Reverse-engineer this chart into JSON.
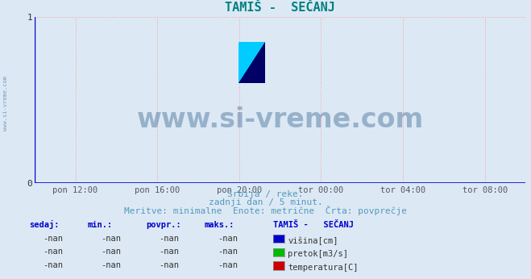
{
  "title": "TAMIŠ -  SEČANJ",
  "background_color": "#dce9f5",
  "plot_bg_color": "#dce9f5",
  "grid_color": "#ff9999",
  "axis_color": "#0000cc",
  "title_color": "#008080",
  "xlim": [
    0,
    1
  ],
  "ylim": [
    0,
    1
  ],
  "yticks": [
    0,
    1
  ],
  "xtick_labels": [
    "pon 12:00",
    "pon 16:00",
    "pon 20:00",
    "tor 00:00",
    "tor 04:00",
    "tor 08:00"
  ],
  "xtick_positions": [
    0.0833,
    0.25,
    0.4167,
    0.5833,
    0.75,
    0.9167
  ],
  "subtitle_line1": "Srbija / reke.",
  "subtitle_line2": "zadnji dan / 5 minut.",
  "subtitle_line3": "Meritve: minimalne  Enote: metrične  Črta: povprečje",
  "subtitle_color": "#5599bb",
  "watermark_text": "www.si-vreme.com",
  "watermark_color": "#1a4a7a",
  "watermark_alpha": 0.35,
  "side_label": "www.si-vreme.com",
  "legend_title": "TAMIŠ -   SEČANJ",
  "legend_items": [
    {
      "label": "višina[cm]",
      "color": "#0000cc"
    },
    {
      "label": "pretok[m3/s]",
      "color": "#00bb00"
    },
    {
      "label": "temperatura[C]",
      "color": "#cc0000"
    }
  ],
  "table_headers": [
    "sedaj:",
    "min.:",
    "povpr.:",
    "maks.:"
  ],
  "table_values": [
    "-nan",
    "-nan",
    "-nan",
    "-nan"
  ],
  "table_color": "#0000cc",
  "font_family": "monospace"
}
